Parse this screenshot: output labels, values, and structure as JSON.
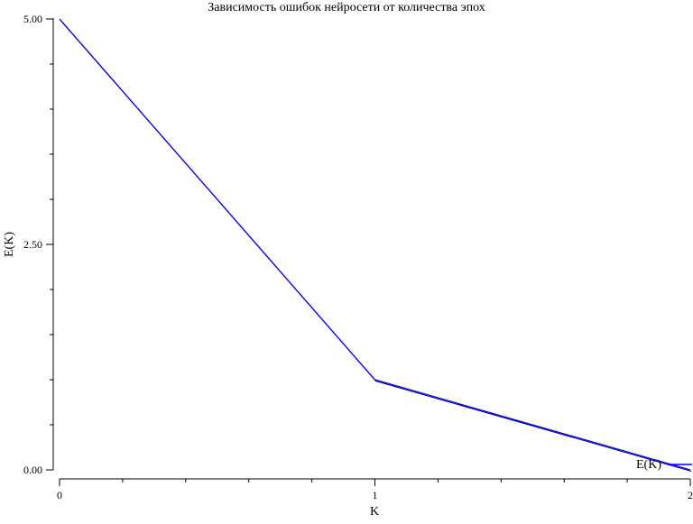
{
  "chart_data": {
    "type": "line",
    "title": "Зависимость ошибок нейросети от количества эпох",
    "xlabel": "K",
    "ylabel": "E(K)",
    "xlim": [
      0,
      2
    ],
    "ylim": [
      0,
      5
    ],
    "x_ticks": [
      {
        "value": 0,
        "label": "0"
      },
      {
        "value": 1,
        "label": "1"
      },
      {
        "value": 2,
        "label": "2"
      }
    ],
    "x_minor_step": 0.2,
    "y_ticks": [
      {
        "value": 0,
        "label": "0.00"
      },
      {
        "value": 2.5,
        "label": "2.50"
      },
      {
        "value": 5,
        "label": "5.00"
      }
    ],
    "y_minor_step": 0.5,
    "grid": false,
    "legend_position": "bottom-right",
    "series": [
      {
        "name": "E(K)",
        "color": "#0000ff",
        "x": [
          0,
          1,
          2
        ],
        "y": [
          5.0,
          1.0,
          0.0
        ]
      }
    ]
  }
}
